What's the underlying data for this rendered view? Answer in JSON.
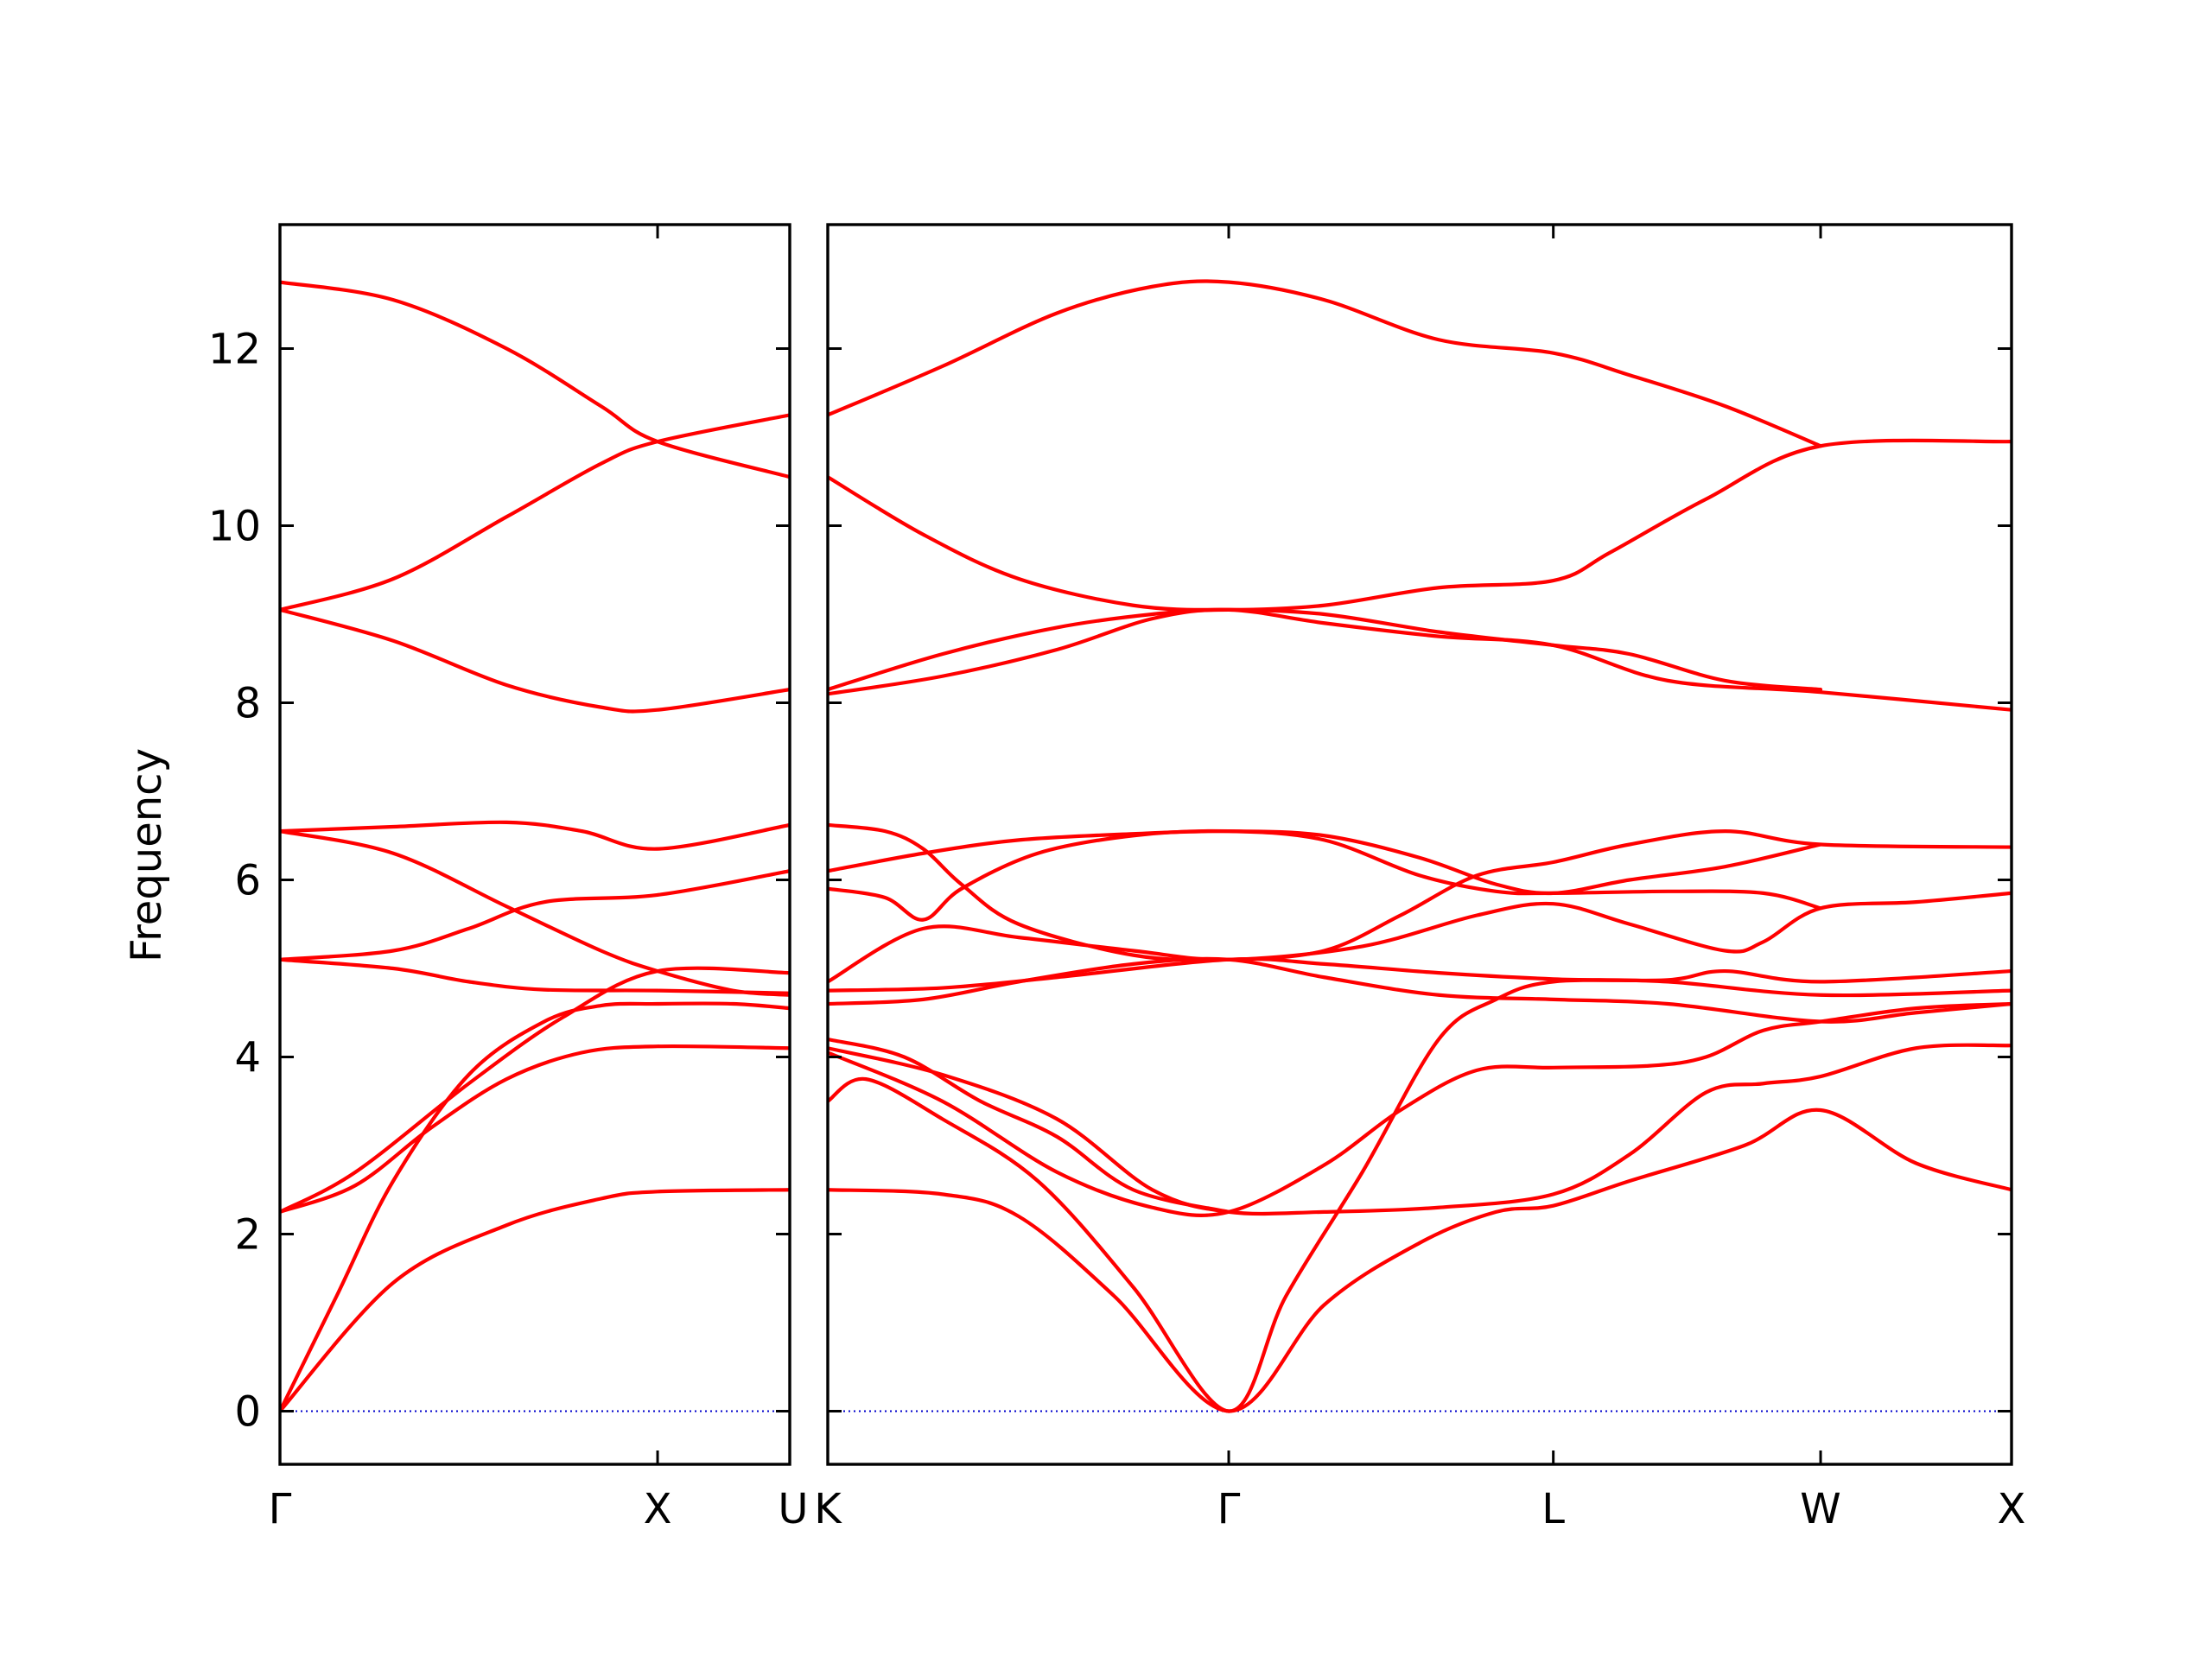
{
  "chart_data": {
    "type": "line",
    "title": "",
    "ylabel": "Frequency",
    "ylim": [
      -0.6,
      13.4
    ],
    "yticks": [
      0,
      2,
      4,
      6,
      8,
      10,
      12
    ],
    "grid": false,
    "legend": "none",
    "band_color": "#ff0000",
    "zero_line_color": "#0000cc",
    "panels": [
      {
        "name": "left",
        "xlim": [
          0,
          1.35
        ],
        "xticks": [
          {
            "pos": 0,
            "label": "Γ"
          },
          {
            "pos": 1.0,
            "label": "X"
          },
          {
            "pos": 1.35,
            "label": "U"
          }
        ],
        "bands": [
          [
            [
              0,
              0
            ],
            [
              0.3,
              1.45
            ],
            [
              0.6,
              2.1
            ],
            [
              0.85,
              2.4
            ],
            [
              1.0,
              2.48
            ],
            [
              1.35,
              2.5
            ]
          ],
          [
            [
              0,
              0
            ],
            [
              0.15,
              1.3
            ],
            [
              0.3,
              2.6
            ],
            [
              0.5,
              3.8
            ],
            [
              0.7,
              4.4
            ],
            [
              0.85,
              4.58
            ],
            [
              1.0,
              4.6
            ],
            [
              1.2,
              4.6
            ],
            [
              1.35,
              4.55
            ]
          ],
          [
            [
              0,
              2.25
            ],
            [
              0.2,
              2.55
            ],
            [
              0.4,
              3.2
            ],
            [
              0.6,
              3.75
            ],
            [
              0.8,
              4.05
            ],
            [
              1.0,
              4.12
            ],
            [
              1.35,
              4.1
            ]
          ],
          [
            [
              0,
              2.25
            ],
            [
              0.2,
              2.7
            ],
            [
              0.5,
              3.7
            ],
            [
              0.75,
              4.45
            ],
            [
              1.0,
              4.97
            ],
            [
              1.35,
              4.95
            ]
          ],
          [
            [
              0,
              5.1
            ],
            [
              0.3,
              5.0
            ],
            [
              0.5,
              4.85
            ],
            [
              0.7,
              4.76
            ],
            [
              1.0,
              4.75
            ],
            [
              1.35,
              4.72
            ]
          ],
          [
            [
              0,
              5.1
            ],
            [
              0.3,
              5.2
            ],
            [
              0.5,
              5.45
            ],
            [
              0.7,
              5.75
            ],
            [
              1.0,
              5.83
            ],
            [
              1.35,
              6.1
            ]
          ],
          [
            [
              0,
              6.55
            ],
            [
              0.3,
              6.6
            ],
            [
              0.6,
              6.65
            ],
            [
              0.8,
              6.55
            ],
            [
              1.0,
              6.35
            ],
            [
              1.35,
              6.62
            ]
          ],
          [
            [
              0,
              6.55
            ],
            [
              0.3,
              6.3
            ],
            [
              0.6,
              5.7
            ],
            [
              0.85,
              5.2
            ],
            [
              1.0,
              4.97
            ],
            [
              1.2,
              4.75
            ],
            [
              1.35,
              4.7
            ]
          ],
          [
            [
              0,
              9.05
            ],
            [
              0.3,
              8.7
            ],
            [
              0.6,
              8.2
            ],
            [
              0.85,
              7.95
            ],
            [
              1.0,
              7.92
            ],
            [
              1.35,
              8.15
            ]
          ],
          [
            [
              0,
              9.05
            ],
            [
              0.3,
              9.4
            ],
            [
              0.6,
              10.1
            ],
            [
              0.85,
              10.7
            ],
            [
              1.0,
              10.95
            ],
            [
              1.35,
              11.25
            ]
          ],
          [
            [
              0,
              12.75
            ],
            [
              0.3,
              12.55
            ],
            [
              0.6,
              12.0
            ],
            [
              0.85,
              11.35
            ],
            [
              1.0,
              10.95
            ],
            [
              1.35,
              10.55
            ]
          ]
        ]
      },
      {
        "name": "right",
        "xlim": [
          0,
          3.1
        ],
        "xticks": [
          {
            "pos": 0,
            "label": "K"
          },
          {
            "pos": 1.05,
            "label": "Γ"
          },
          {
            "pos": 1.9,
            "label": "L"
          },
          {
            "pos": 2.6,
            "label": "W"
          },
          {
            "pos": 3.1,
            "label": "X"
          }
        ],
        "bands": [
          [
            [
              0,
              2.5
            ],
            [
              0.3,
              2.45
            ],
            [
              0.5,
              2.2
            ],
            [
              0.75,
              1.3
            ],
            [
              1.05,
              0
            ],
            [
              1.3,
              1.2
            ],
            [
              1.55,
              1.9
            ],
            [
              1.75,
              2.25
            ],
            [
              1.9,
              2.32
            ],
            [
              2.1,
              2.6
            ],
            [
              2.4,
              3.0
            ],
            [
              2.6,
              3.4
            ],
            [
              2.85,
              2.8
            ],
            [
              3.1,
              2.5
            ]
          ],
          [
            [
              0,
              3.5
            ],
            [
              0.1,
              3.75
            ],
            [
              0.3,
              3.3
            ],
            [
              0.55,
              2.6
            ],
            [
              0.8,
              1.4
            ],
            [
              1.05,
              0
            ],
            [
              1.2,
              1.3
            ],
            [
              1.4,
              2.7
            ],
            [
              1.6,
              4.2
            ],
            [
              1.75,
              4.65
            ],
            [
              1.9,
              4.85
            ],
            [
              2.2,
              4.87
            ],
            [
              2.35,
              4.97
            ],
            [
              2.6,
              4.85
            ],
            [
              3.1,
              4.97
            ]
          ],
          [
            [
              0,
              4.05
            ],
            [
              0.3,
              3.5
            ],
            [
              0.6,
              2.7
            ],
            [
              0.85,
              2.3
            ],
            [
              1.05,
              2.25
            ],
            [
              1.3,
              2.78
            ],
            [
              1.5,
              3.4
            ],
            [
              1.7,
              3.85
            ],
            [
              1.9,
              3.88
            ],
            [
              2.15,
              3.9
            ],
            [
              2.3,
              4.0
            ],
            [
              2.45,
              4.3
            ],
            [
              2.6,
              4.4
            ],
            [
              2.85,
              4.55
            ],
            [
              3.1,
              4.6
            ]
          ],
          [
            [
              0,
              4.1
            ],
            [
              0.3,
              3.8
            ],
            [
              0.6,
              3.3
            ],
            [
              0.85,
              2.5
            ],
            [
              1.05,
              2.25
            ],
            [
              1.3,
              2.25
            ],
            [
              1.6,
              2.3
            ],
            [
              1.9,
              2.45
            ],
            [
              2.1,
              2.9
            ],
            [
              2.3,
              3.6
            ],
            [
              2.45,
              3.7
            ],
            [
              2.6,
              3.78
            ],
            [
              2.85,
              4.1
            ],
            [
              3.1,
              4.13
            ]
          ],
          [
            [
              0,
              4.2
            ],
            [
              0.2,
              4.0
            ],
            [
              0.4,
              3.5
            ],
            [
              0.6,
              3.1
            ],
            [
              0.8,
              2.5
            ],
            [
              1.05,
              2.25
            ]
          ],
          [
            [
              0,
              4.6
            ],
            [
              0.25,
              4.65
            ],
            [
              0.5,
              4.85
            ],
            [
              0.8,
              5.05
            ],
            [
              1.05,
              5.1
            ],
            [
              1.3,
              4.9
            ],
            [
              1.6,
              4.7
            ],
            [
              1.9,
              4.65
            ],
            [
              2.2,
              4.6
            ],
            [
              2.6,
              4.4
            ],
            [
              2.85,
              4.5
            ],
            [
              3.1,
              4.6
            ]
          ],
          [
            [
              0,
              4.75
            ],
            [
              0.3,
              4.78
            ],
            [
              0.6,
              4.9
            ],
            [
              1.05,
              5.1
            ],
            [
              1.3,
              5.05
            ],
            [
              1.6,
              4.95
            ],
            [
              1.9,
              4.88
            ],
            [
              2.2,
              4.85
            ],
            [
              2.6,
              4.7
            ],
            [
              3.1,
              4.75
            ]
          ],
          [
            [
              0,
              4.85
            ],
            [
              0.25,
              5.45
            ],
            [
              0.5,
              5.35
            ],
            [
              0.8,
              5.2
            ],
            [
              1.05,
              5.1
            ],
            [
              1.4,
              5.25
            ],
            [
              1.7,
              5.6
            ],
            [
              1.9,
              5.73
            ],
            [
              2.1,
              5.5
            ],
            [
              2.35,
              5.2
            ],
            [
              2.45,
              5.3
            ],
            [
              2.6,
              5.68
            ],
            [
              2.85,
              5.75
            ],
            [
              3.1,
              5.85
            ]
          ],
          [
            [
              0,
              5.9
            ],
            [
              0.15,
              5.8
            ],
            [
              0.25,
              5.55
            ],
            [
              0.35,
              5.9
            ],
            [
              0.55,
              6.3
            ],
            [
              0.8,
              6.5
            ],
            [
              1.05,
              6.55
            ],
            [
              1.3,
              6.45
            ],
            [
              1.55,
              6.05
            ],
            [
              1.75,
              5.87
            ],
            [
              1.9,
              5.85
            ],
            [
              2.2,
              5.87
            ],
            [
              2.45,
              5.85
            ],
            [
              2.6,
              5.68
            ]
          ],
          [
            [
              0,
              6.62
            ],
            [
              0.15,
              6.55
            ],
            [
              0.25,
              6.35
            ],
            [
              0.35,
              5.95
            ],
            [
              0.5,
              5.5
            ],
            [
              0.8,
              5.15
            ],
            [
              1.05,
              5.1
            ],
            [
              1.3,
              5.2
            ],
            [
              1.5,
              5.6
            ],
            [
              1.7,
              6.05
            ],
            [
              1.9,
              6.2
            ],
            [
              2.1,
              6.4
            ],
            [
              2.35,
              6.55
            ],
            [
              2.6,
              6.4
            ],
            [
              3.1,
              6.37
            ]
          ],
          [
            [
              0,
              6.1
            ],
            [
              0.25,
              6.3
            ],
            [
              0.5,
              6.45
            ],
            [
              0.8,
              6.52
            ],
            [
              1.05,
              6.55
            ],
            [
              1.3,
              6.5
            ],
            [
              1.55,
              6.25
            ],
            [
              1.75,
              5.95
            ],
            [
              1.9,
              5.85
            ],
            [
              2.1,
              6.0
            ],
            [
              2.35,
              6.15
            ],
            [
              2.6,
              6.4
            ]
          ],
          [
            [
              0,
              8.1
            ],
            [
              0.3,
              8.3
            ],
            [
              0.6,
              8.6
            ],
            [
              0.85,
              8.95
            ],
            [
              1.05,
              9.05
            ],
            [
              1.3,
              8.9
            ],
            [
              1.6,
              8.75
            ],
            [
              1.9,
              8.65
            ],
            [
              2.2,
              8.25
            ],
            [
              2.6,
              8.12
            ],
            [
              3.1,
              7.92
            ]
          ],
          [
            [
              0,
              8.15
            ],
            [
              0.3,
              8.55
            ],
            [
              0.6,
              8.85
            ],
            [
              0.85,
              9.0
            ],
            [
              1.05,
              9.05
            ],
            [
              1.3,
              9.0
            ],
            [
              1.6,
              8.8
            ],
            [
              1.9,
              8.65
            ],
            [
              2.1,
              8.55
            ],
            [
              2.35,
              8.25
            ],
            [
              2.6,
              8.15
            ]
          ],
          [
            [
              0,
              10.55
            ],
            [
              0.25,
              9.9
            ],
            [
              0.5,
              9.4
            ],
            [
              0.8,
              9.1
            ],
            [
              1.05,
              9.05
            ],
            [
              1.3,
              9.1
            ],
            [
              1.6,
              9.3
            ],
            [
              1.9,
              9.38
            ],
            [
              2.05,
              9.7
            ],
            [
              2.3,
              10.3
            ],
            [
              2.6,
              10.9
            ],
            [
              3.1,
              10.95
            ]
          ],
          [
            [
              0,
              11.25
            ],
            [
              0.3,
              11.8
            ],
            [
              0.6,
              12.4
            ],
            [
              0.85,
              12.7
            ],
            [
              1.05,
              12.75
            ],
            [
              1.3,
              12.55
            ],
            [
              1.6,
              12.1
            ],
            [
              1.9,
              11.95
            ],
            [
              2.1,
              11.7
            ],
            [
              2.35,
              11.35
            ],
            [
              2.6,
              10.9
            ]
          ]
        ]
      }
    ]
  }
}
